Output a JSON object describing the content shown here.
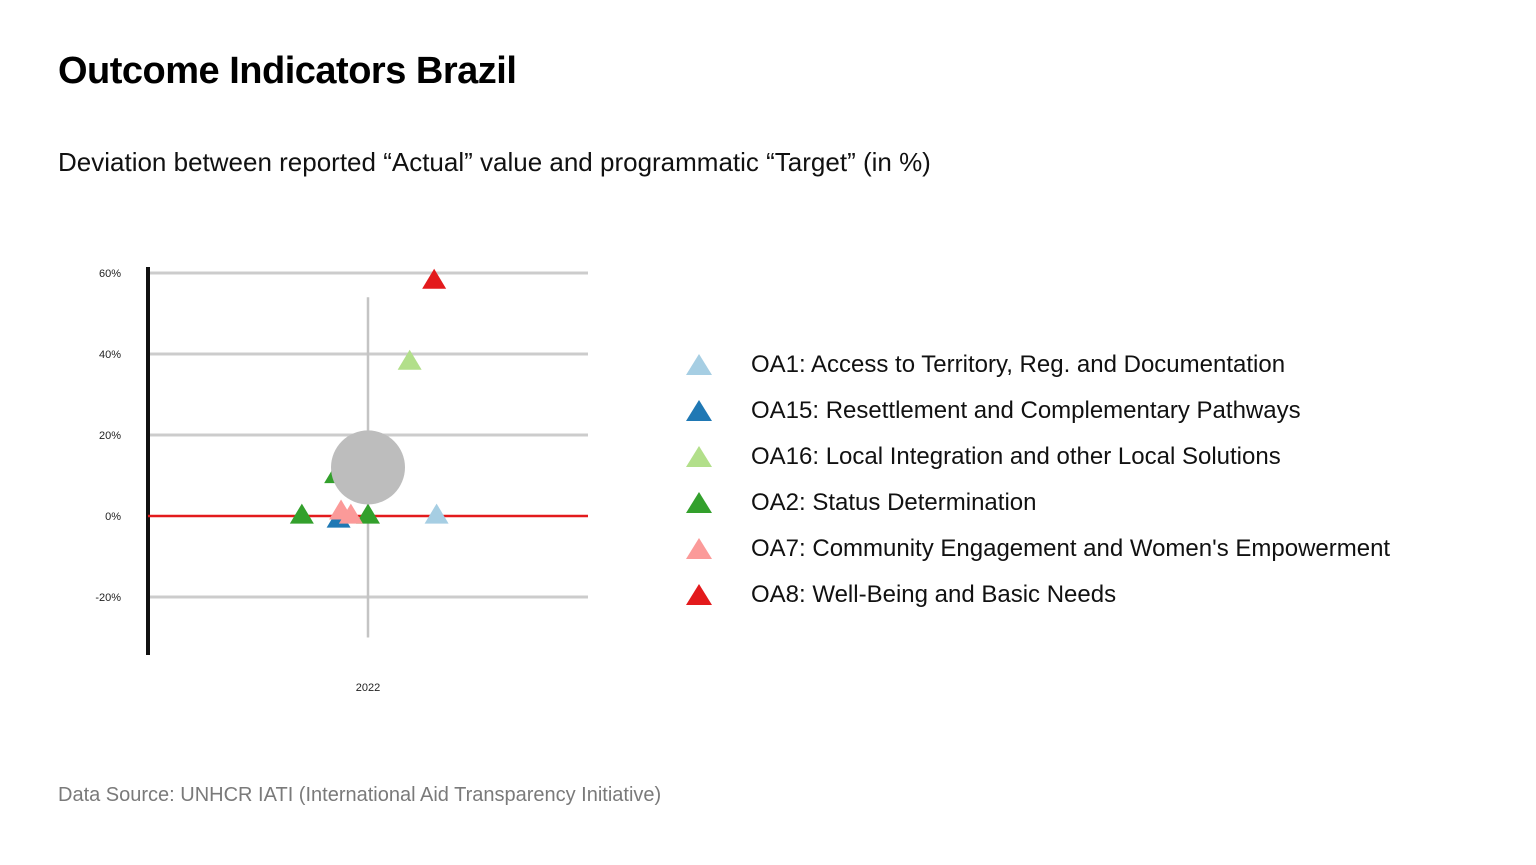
{
  "title": "Outcome Indicators Brazil",
  "subtitle": "Deviation between reported “Actual” value and programmatic “Target” (in %)",
  "source": "Data Source: UNHCR IATI (International Aid Transparency Initiative)",
  "chart_data": {
    "type": "scatter",
    "title": "",
    "xlabel": "",
    "ylabel": "",
    "x_categories": [
      "2022"
    ],
    "y_ticks": [
      60,
      40,
      20,
      0,
      -20
    ],
    "y_tick_labels": [
      "60%",
      "40%",
      "20%",
      "0%",
      "-20%"
    ],
    "ylim": [
      -35,
      65
    ],
    "grid": true,
    "reference_line": {
      "y": 0,
      "color": "#e31a1c"
    },
    "legend_position": "right",
    "series": [
      {
        "name": "OA1: Access to Territory, Reg. and Documentation",
        "color": "#a6cee3",
        "points": [
          {
            "x": 0.28,
            "y": 0
          }
        ]
      },
      {
        "name": "OA15: Resettlement and Complementary Pathways",
        "color": "#1f78b4",
        "points": [
          {
            "x": -0.12,
            "y": -1
          }
        ]
      },
      {
        "name": "OA16:  Local Integration and other Local Solutions",
        "color": "#b2df8a",
        "points": [
          {
            "x": 0.17,
            "y": 38
          }
        ]
      },
      {
        "name": "OA2: Status Determination",
        "color": "#33a02c",
        "points": [
          {
            "x": -0.27,
            "y": 0
          },
          {
            "x": -0.13,
            "y": 10
          },
          {
            "x": 0.0,
            "y": 0
          }
        ]
      },
      {
        "name": "OA7: Community Engagement and Women's Empowerment",
        "color": "#fb9a99",
        "points": [
          {
            "x": -0.11,
            "y": 1
          },
          {
            "x": -0.07,
            "y": 0
          }
        ]
      },
      {
        "name": "OA8: Well-Being and Basic Needs",
        "color": "#e31a1c",
        "points": [
          {
            "x": 0.27,
            "y": 58
          }
        ]
      }
    ],
    "summary_point": {
      "x": 0,
      "y": 12,
      "color": "#bdbdbd"
    },
    "summary_range": [
      -30,
      54
    ]
  }
}
